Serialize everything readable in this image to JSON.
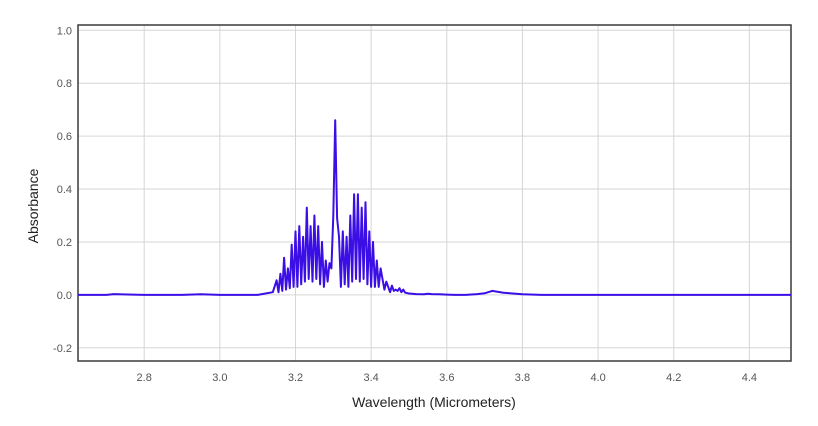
{
  "chart_data": {
    "type": "line",
    "title": "",
    "xlabel": "Wavelength (Micrometers)",
    "ylabel": "Absorbance",
    "xlim": [
      2.625,
      4.51
    ],
    "ylim": [
      -0.25,
      1.02
    ],
    "xticks": [
      2.8,
      3.0,
      3.2,
      3.4,
      3.6,
      3.8,
      4.0,
      4.2,
      4.4
    ],
    "xtick_labels": [
      "2.8",
      "3.0",
      "3.2",
      "3.4",
      "3.6",
      "3.8",
      "4.0",
      "4.2",
      "4.4"
    ],
    "yticks": [
      -0.2,
      0.0,
      0.2,
      0.4,
      0.6,
      0.8,
      1.0
    ],
    "ytick_labels": [
      "-0.2",
      "0.0",
      "0.2",
      "0.4",
      "0.6",
      "0.8",
      "1.0"
    ],
    "grid": true,
    "legend": "none",
    "series": [
      {
        "color": "#3b0ee6",
        "x": [
          2.625,
          2.7,
          2.72,
          2.8,
          2.9,
          2.95,
          3.0,
          3.1,
          3.14,
          3.15,
          3.155,
          3.16,
          3.165,
          3.17,
          3.175,
          3.18,
          3.185,
          3.19,
          3.195,
          3.2,
          3.205,
          3.21,
          3.215,
          3.22,
          3.225,
          3.23,
          3.235,
          3.24,
          3.245,
          3.25,
          3.255,
          3.26,
          3.265,
          3.27,
          3.275,
          3.28,
          3.285,
          3.29,
          3.295,
          3.3,
          3.305,
          3.31,
          3.315,
          3.32,
          3.325,
          3.33,
          3.335,
          3.34,
          3.345,
          3.35,
          3.355,
          3.36,
          3.365,
          3.37,
          3.375,
          3.38,
          3.385,
          3.39,
          3.395,
          3.4,
          3.405,
          3.41,
          3.415,
          3.42,
          3.425,
          3.43,
          3.435,
          3.44,
          3.445,
          3.45,
          3.455,
          3.46,
          3.465,
          3.47,
          3.475,
          3.48,
          3.485,
          3.49,
          3.5,
          3.52,
          3.54,
          3.55,
          3.56,
          3.58,
          3.6,
          3.62,
          3.64,
          3.65,
          3.66,
          3.68,
          3.7,
          3.72,
          3.75,
          3.8,
          3.85,
          3.9,
          4.0,
          4.1,
          4.15,
          4.2,
          4.25,
          4.3,
          4.35,
          4.4,
          4.45,
          4.51
        ],
        "y": [
          0.0,
          0.0,
          0.003,
          0.0,
          0.0,
          0.002,
          0.0,
          0.0,
          0.01,
          0.055,
          0.01,
          0.08,
          0.015,
          0.14,
          0.02,
          0.1,
          0.025,
          0.19,
          0.03,
          0.24,
          0.03,
          0.26,
          0.04,
          0.22,
          0.05,
          0.33,
          0.06,
          0.26,
          0.05,
          0.3,
          0.06,
          0.26,
          0.04,
          0.2,
          0.03,
          0.13,
          0.05,
          0.12,
          0.1,
          0.3,
          0.66,
          0.29,
          0.22,
          0.03,
          0.24,
          0.04,
          0.22,
          0.03,
          0.3,
          0.05,
          0.38,
          0.06,
          0.38,
          0.05,
          0.33,
          0.06,
          0.35,
          0.04,
          0.24,
          0.03,
          0.2,
          0.03,
          0.13,
          0.03,
          0.1,
          0.06,
          0.02,
          0.05,
          0.03,
          0.01,
          0.035,
          0.015,
          0.02,
          0.015,
          0.025,
          0.01,
          0.02,
          0.008,
          0.005,
          0.003,
          0.002,
          0.004,
          0.003,
          0.002,
          0.001,
          0.0,
          0.0,
          0.0,
          0.001,
          0.003,
          0.006,
          0.015,
          0.008,
          0.002,
          0.0,
          0.0,
          0.0,
          0.0,
          0.0,
          0.0,
          0.0,
          0.0,
          0.0,
          0.0,
          0.0,
          0.0
        ]
      }
    ]
  }
}
